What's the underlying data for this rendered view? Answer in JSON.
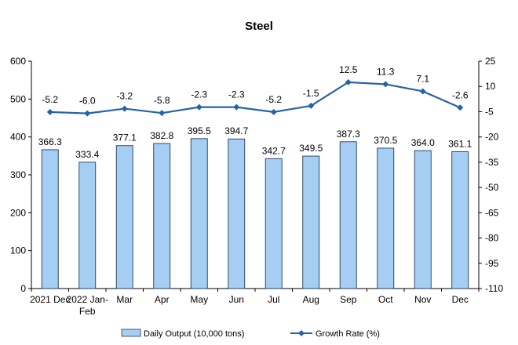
{
  "chart_data": {
    "type": "bar",
    "title": "Steel",
    "categories": [
      [
        "2021 Dec"
      ],
      [
        "2022 Jan-",
        "Feb"
      ],
      [
        "Mar"
      ],
      [
        "Apr"
      ],
      [
        "May"
      ],
      [
        "Jun"
      ],
      [
        "Jul"
      ],
      [
        "Aug"
      ],
      [
        "Sep"
      ],
      [
        "Oct"
      ],
      [
        "Nov"
      ],
      [
        "Dec"
      ]
    ],
    "series": [
      {
        "name": "Daily Output (10,000 tons)",
        "type": "bar",
        "axis": "left",
        "values": [
          366.3,
          333.4,
          377.1,
          382.8,
          395.5,
          394.7,
          342.7,
          349.5,
          387.3,
          370.5,
          364.0,
          361.1
        ],
        "labels": [
          "366.3",
          "333.4",
          "377.1",
          "382.8",
          "395.5",
          "394.7",
          "342.7",
          "349.5",
          "387.3",
          "370.5",
          "364.0",
          "361.1"
        ]
      },
      {
        "name": "Growth Rate (%)",
        "type": "line",
        "axis": "right",
        "values": [
          -5.2,
          -6.0,
          -3.2,
          -5.8,
          -2.3,
          -2.3,
          -5.2,
          -1.5,
          12.5,
          11.3,
          7.1,
          -2.6
        ],
        "labels": [
          "-5.2",
          "-6.0",
          "-3.2",
          "-5.8",
          "-2.3",
          "-2.3",
          "-5.2",
          "-1.5",
          "12.5",
          "11.3",
          "7.1",
          "-2.6"
        ]
      }
    ],
    "y_left": {
      "min": 0,
      "max": 600,
      "ticks": [
        "0",
        "100",
        "200",
        "300",
        "400",
        "500",
        "600"
      ]
    },
    "y_right": {
      "min": -110,
      "max": 25,
      "ticks": [
        "25",
        "10",
        "-5",
        "-20",
        "-35",
        "-50",
        "-65",
        "-80",
        "-95",
        "-110"
      ]
    },
    "grid": false,
    "legend_position": "bottom",
    "colors": {
      "bar_fill": "#a6cdf2",
      "bar_stroke": "#1f3b5e",
      "line": "#2563a8"
    }
  }
}
